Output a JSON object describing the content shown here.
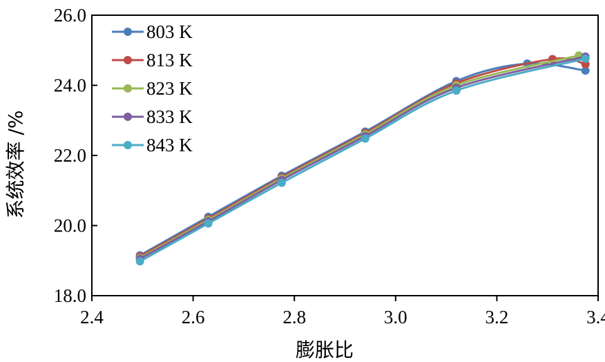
{
  "chart_data": {
    "type": "line",
    "xlabel": "膨胀比",
    "ylabel": "系统效率 /%",
    "xlim": [
      2.4,
      3.4
    ],
    "ylim": [
      18.0,
      26.0
    ],
    "x_ticks": [
      "2.4",
      "2.6",
      "2.8",
      "3.0",
      "3.2",
      "3.4"
    ],
    "y_ticks": [
      "18.0",
      "20.0",
      "22.0",
      "24.0",
      "26.0"
    ],
    "legend_position": "top-left",
    "grid": false,
    "series": [
      {
        "name": "803 K",
        "color": "#4a7ebb",
        "x": [
          2.495,
          2.63,
          2.775,
          2.94,
          3.12,
          3.26,
          3.375
        ],
        "y": [
          19.15,
          20.25,
          21.42,
          22.68,
          24.12,
          24.62,
          24.42
        ]
      },
      {
        "name": "813 K",
        "color": "#be4b48",
        "x": [
          2.495,
          2.63,
          2.775,
          2.94,
          3.12,
          3.31,
          3.375
        ],
        "y": [
          19.12,
          20.2,
          21.38,
          22.64,
          24.06,
          24.75,
          24.6
        ]
      },
      {
        "name": "823 K",
        "color": "#98b954",
        "x": [
          2.495,
          2.63,
          2.775,
          2.94,
          3.12,
          3.362
        ],
        "y": [
          19.08,
          20.16,
          21.34,
          22.6,
          24.0,
          24.85
        ]
      },
      {
        "name": "833 K",
        "color": "#7d5fa0",
        "x": [
          2.495,
          2.63,
          2.775,
          2.94,
          3.12,
          3.375
        ],
        "y": [
          19.05,
          20.12,
          21.3,
          22.55,
          23.93,
          24.82
        ]
      },
      {
        "name": "843 K",
        "color": "#4bacc6",
        "x": [
          2.495,
          2.63,
          2.775,
          2.94,
          3.12,
          3.375
        ],
        "y": [
          18.98,
          20.06,
          21.22,
          22.48,
          23.85,
          24.76
        ]
      }
    ]
  }
}
